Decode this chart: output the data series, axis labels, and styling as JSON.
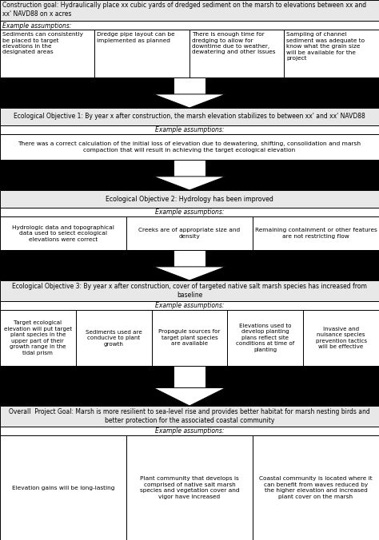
{
  "construction_goal": "Construction goal: Hydraulically place xx cubic yards of dredged sediment on the marsh to elevations between xx and\nxx' NAVD88 on x acres",
  "construction_assumptions_label": "Example assumptions:",
  "construction_cells": [
    "Sediments can consistently\nbe placed to target\nelevations in the\ndesignated areas",
    "Dredge pipe layout can be\nimplemented as planned",
    "There is enough time for\ndredging to allow for\ndowntime due to weather,\ndewatering and other issues",
    "Sampling of channel\nsediment was adequate to\nknow what the grain size\nwill be available for the\nproject"
  ],
  "eco1_title": "Ecological Objective 1: By year x after construction, the marsh elevation stabilizes to between xx' and xx' NAVD88",
  "eco1_assumptions_label": "Example assumptions:",
  "eco1_cell": "There was a correct calculation of the initial loss of elevation due to dewatering, shifting, consolidation and marsh\ncompaction that will result in achieving the target ecological elevation",
  "eco2_title": "Ecological Objective 2: Hydrology has been improved",
  "eco2_assumptions_label": "Example assumptions:",
  "eco2_cells": [
    "Hydrologic data and topographical\ndata used to select ecological\nelevations were correct",
    "Creeks are of appropriate size and\ndensity",
    "Remaining containment or other features\nare not restricting flow"
  ],
  "eco3_title": "Ecological Objective 3: By year x after construction, cover of targeted native salt marsh species has increased from\nbaseline",
  "eco3_assumptions_label": "Example assumptions:",
  "eco3_cells": [
    "Target ecological\nelevation will put target\nplant species in the\nupper part of their\ngrowth range in the\ntidal prism",
    "Sediments used are\nconducive to plant\ngrowth",
    "Propagule sources for\ntarget plant species\nare available",
    "Elevations used to\ndevelop planting\nplans reflect site\nconditions at time of\nplanting",
    "Invasive and\nnuisance species\nprevention tactics\nwill be effective"
  ],
  "overall_title": "Overall  Project Goal: Marsh is more resilient to sea-level rise and provides better habitat for marsh nesting birds and\nbetter protection for the associated coastal community",
  "overall_assumptions_label": "Example assumptions:",
  "overall_cells": [
    "Elevation gains will be long-lasting",
    "Plant community that develops is\ncomprised of native salt marsh\nspecies and vegetation cover and\nvigor have increased",
    "Coastal community is located where it\ncan benefit from waves reduced by\nthe higher elevation and increased\nplant cover on the marsh"
  ]
}
